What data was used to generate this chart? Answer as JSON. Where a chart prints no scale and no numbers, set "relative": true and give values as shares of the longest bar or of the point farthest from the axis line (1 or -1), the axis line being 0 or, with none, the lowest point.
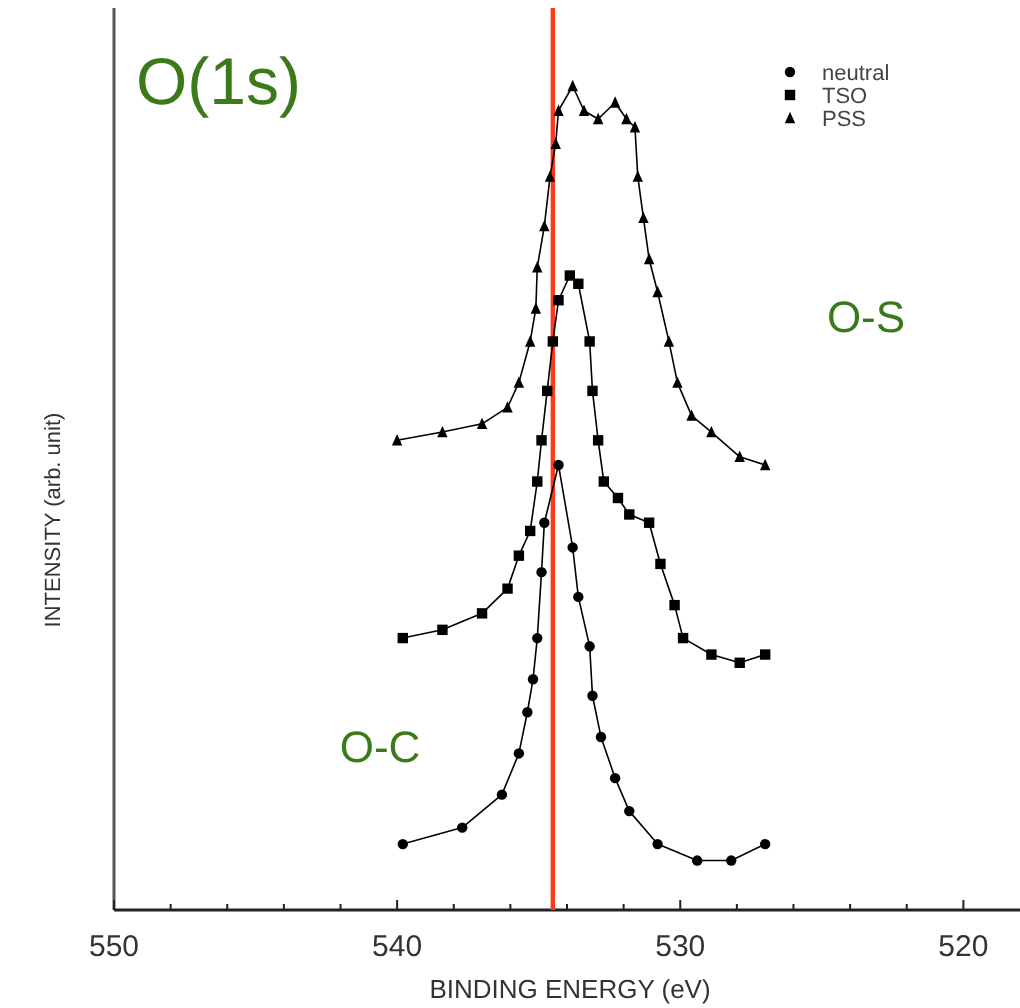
{
  "chart_data": {
    "type": "line",
    "title": "O(1s)",
    "xlabel": "BINDING ENERGY (eV)",
    "ylabel": "INTENSITY (arb. unit)",
    "relative": true,
    "tick_labels": "x",
    "legend": "top right",
    "line_style": "solid",
    "xlim": [
      550,
      518
    ],
    "xticks": [
      550,
      {
        "value": 548,
        "label": null
      },
      {
        "value": 546,
        "label": null
      },
      {
        "value": 544,
        "label": null
      },
      {
        "value": 542,
        "label": null
      },
      540,
      {
        "value": 538,
        "label": null
      },
      {
        "value": 536,
        "label": null
      },
      {
        "value": 534,
        "label": null
      },
      {
        "value": 532,
        "label": null
      },
      530,
      {
        "value": 528,
        "label": null
      },
      {
        "value": 526,
        "label": null
      },
      {
        "value": 524,
        "label": null
      },
      {
        "value": 522,
        "label": null
      },
      520
    ],
    "series": [
      {
        "name": "neutral",
        "color": "#000000",
        "marker": "circle",
        "x": [
          539.8,
          537.7,
          536.3,
          535.7,
          535.4,
          535.2,
          535.05,
          534.9,
          534.8,
          534.3,
          533.8,
          533.6,
          533.2,
          533.1,
          532.8,
          532.3,
          531.8,
          530.8,
          529.4,
          528.2,
          527.0
        ],
        "values": [
          0.08,
          0.1,
          0.14,
          0.19,
          0.24,
          0.28,
          0.33,
          0.41,
          0.47,
          0.54,
          0.44,
          0.38,
          0.32,
          0.26,
          0.21,
          0.16,
          0.12,
          0.08,
          0.06,
          0.06,
          0.08
        ]
      },
      {
        "name": "TSO",
        "color": "#000000",
        "marker": "square",
        "x": [
          539.8,
          538.4,
          537.0,
          536.1,
          535.7,
          535.3,
          535.05,
          534.9,
          534.7,
          534.5,
          534.3,
          533.9,
          533.6,
          533.2,
          533.1,
          532.9,
          532.7,
          532.2,
          531.8,
          531.1,
          530.7,
          530.2,
          529.9,
          528.9,
          527.9,
          527.0
        ],
        "values": [
          0.33,
          0.34,
          0.36,
          0.39,
          0.43,
          0.46,
          0.52,
          0.57,
          0.63,
          0.69,
          0.74,
          0.77,
          0.76,
          0.69,
          0.63,
          0.57,
          0.52,
          0.5,
          0.48,
          0.47,
          0.42,
          0.37,
          0.33,
          0.31,
          0.3,
          0.31
        ]
      },
      {
        "name": "PSS",
        "color": "#000000",
        "marker": "triangle",
        "x": [
          540.0,
          538.4,
          537.0,
          536.1,
          535.7,
          535.3,
          535.1,
          535.05,
          534.8,
          534.6,
          534.4,
          534.3,
          533.8,
          533.4,
          532.9,
          532.3,
          531.9,
          531.6,
          531.5,
          531.3,
          531.1,
          530.8,
          530.4,
          530.1,
          529.6,
          528.9,
          527.9,
          527.0
        ],
        "values": [
          0.57,
          0.58,
          0.59,
          0.61,
          0.64,
          0.69,
          0.73,
          0.78,
          0.83,
          0.89,
          0.93,
          0.97,
          1,
          0.97,
          0.96,
          0.98,
          0.96,
          0.95,
          0.89,
          0.84,
          0.79,
          0.75,
          0.69,
          0.64,
          0.6,
          0.58,
          0.55,
          0.54
        ]
      }
    ],
    "ref_lines": [
      {
        "axis": "x",
        "value": 534.5,
        "color": "#ff3a1a"
      }
    ],
    "annotations": [
      "O-S",
      "O-C"
    ]
  }
}
